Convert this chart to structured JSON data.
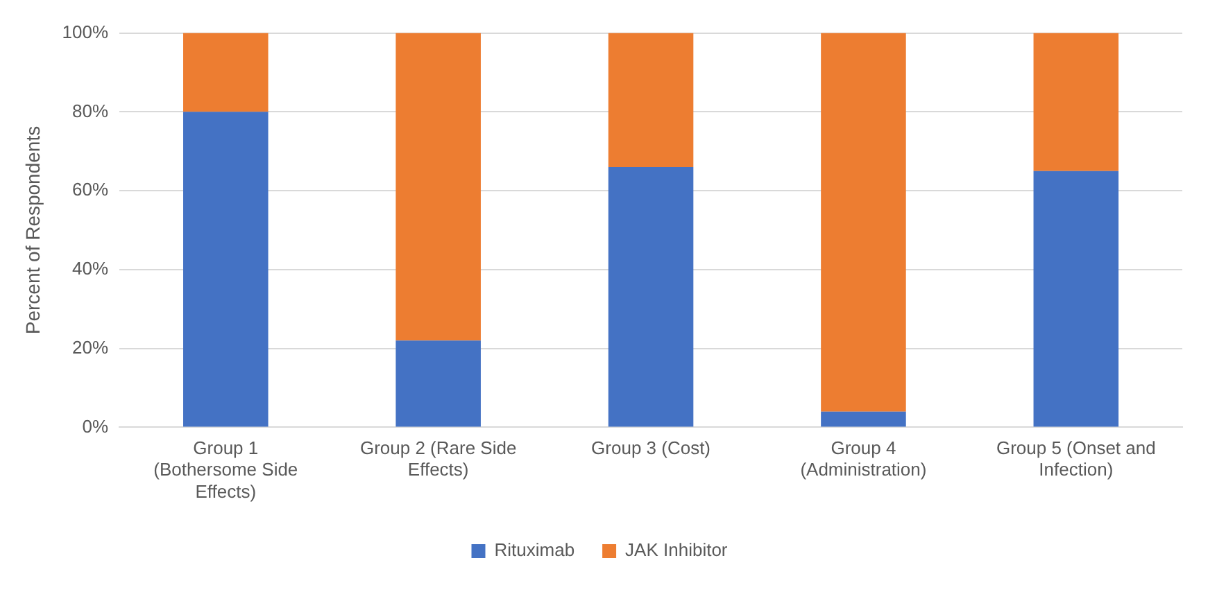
{
  "chart_data": {
    "type": "bar",
    "stacked": true,
    "ylabel": "Percent of Respondents",
    "categories": [
      "Group 1 (Bothersome Side Effects)",
      "Group 2 (Rare Side Effects)",
      "Group 3 (Cost)",
      "Group 4 (Administration)",
      "Group 5 (Onset and Infection)"
    ],
    "series": [
      {
        "name": "Rituximab",
        "color": "#4472c4",
        "values": [
          80,
          22,
          66,
          4,
          65
        ]
      },
      {
        "name": "JAK Inhibitor",
        "color": "#ed7d31",
        "values": [
          20,
          78,
          34,
          96,
          35
        ]
      }
    ],
    "ylim": [
      0,
      100
    ],
    "yticks": [
      {
        "value": 0,
        "label": "0%"
      },
      {
        "value": 20,
        "label": "20%"
      },
      {
        "value": 40,
        "label": "40%"
      },
      {
        "value": 60,
        "label": "60%"
      },
      {
        "value": 80,
        "label": "80%"
      },
      {
        "value": 100,
        "label": "100%"
      }
    ],
    "grid": "y",
    "legend": "bottom"
  }
}
